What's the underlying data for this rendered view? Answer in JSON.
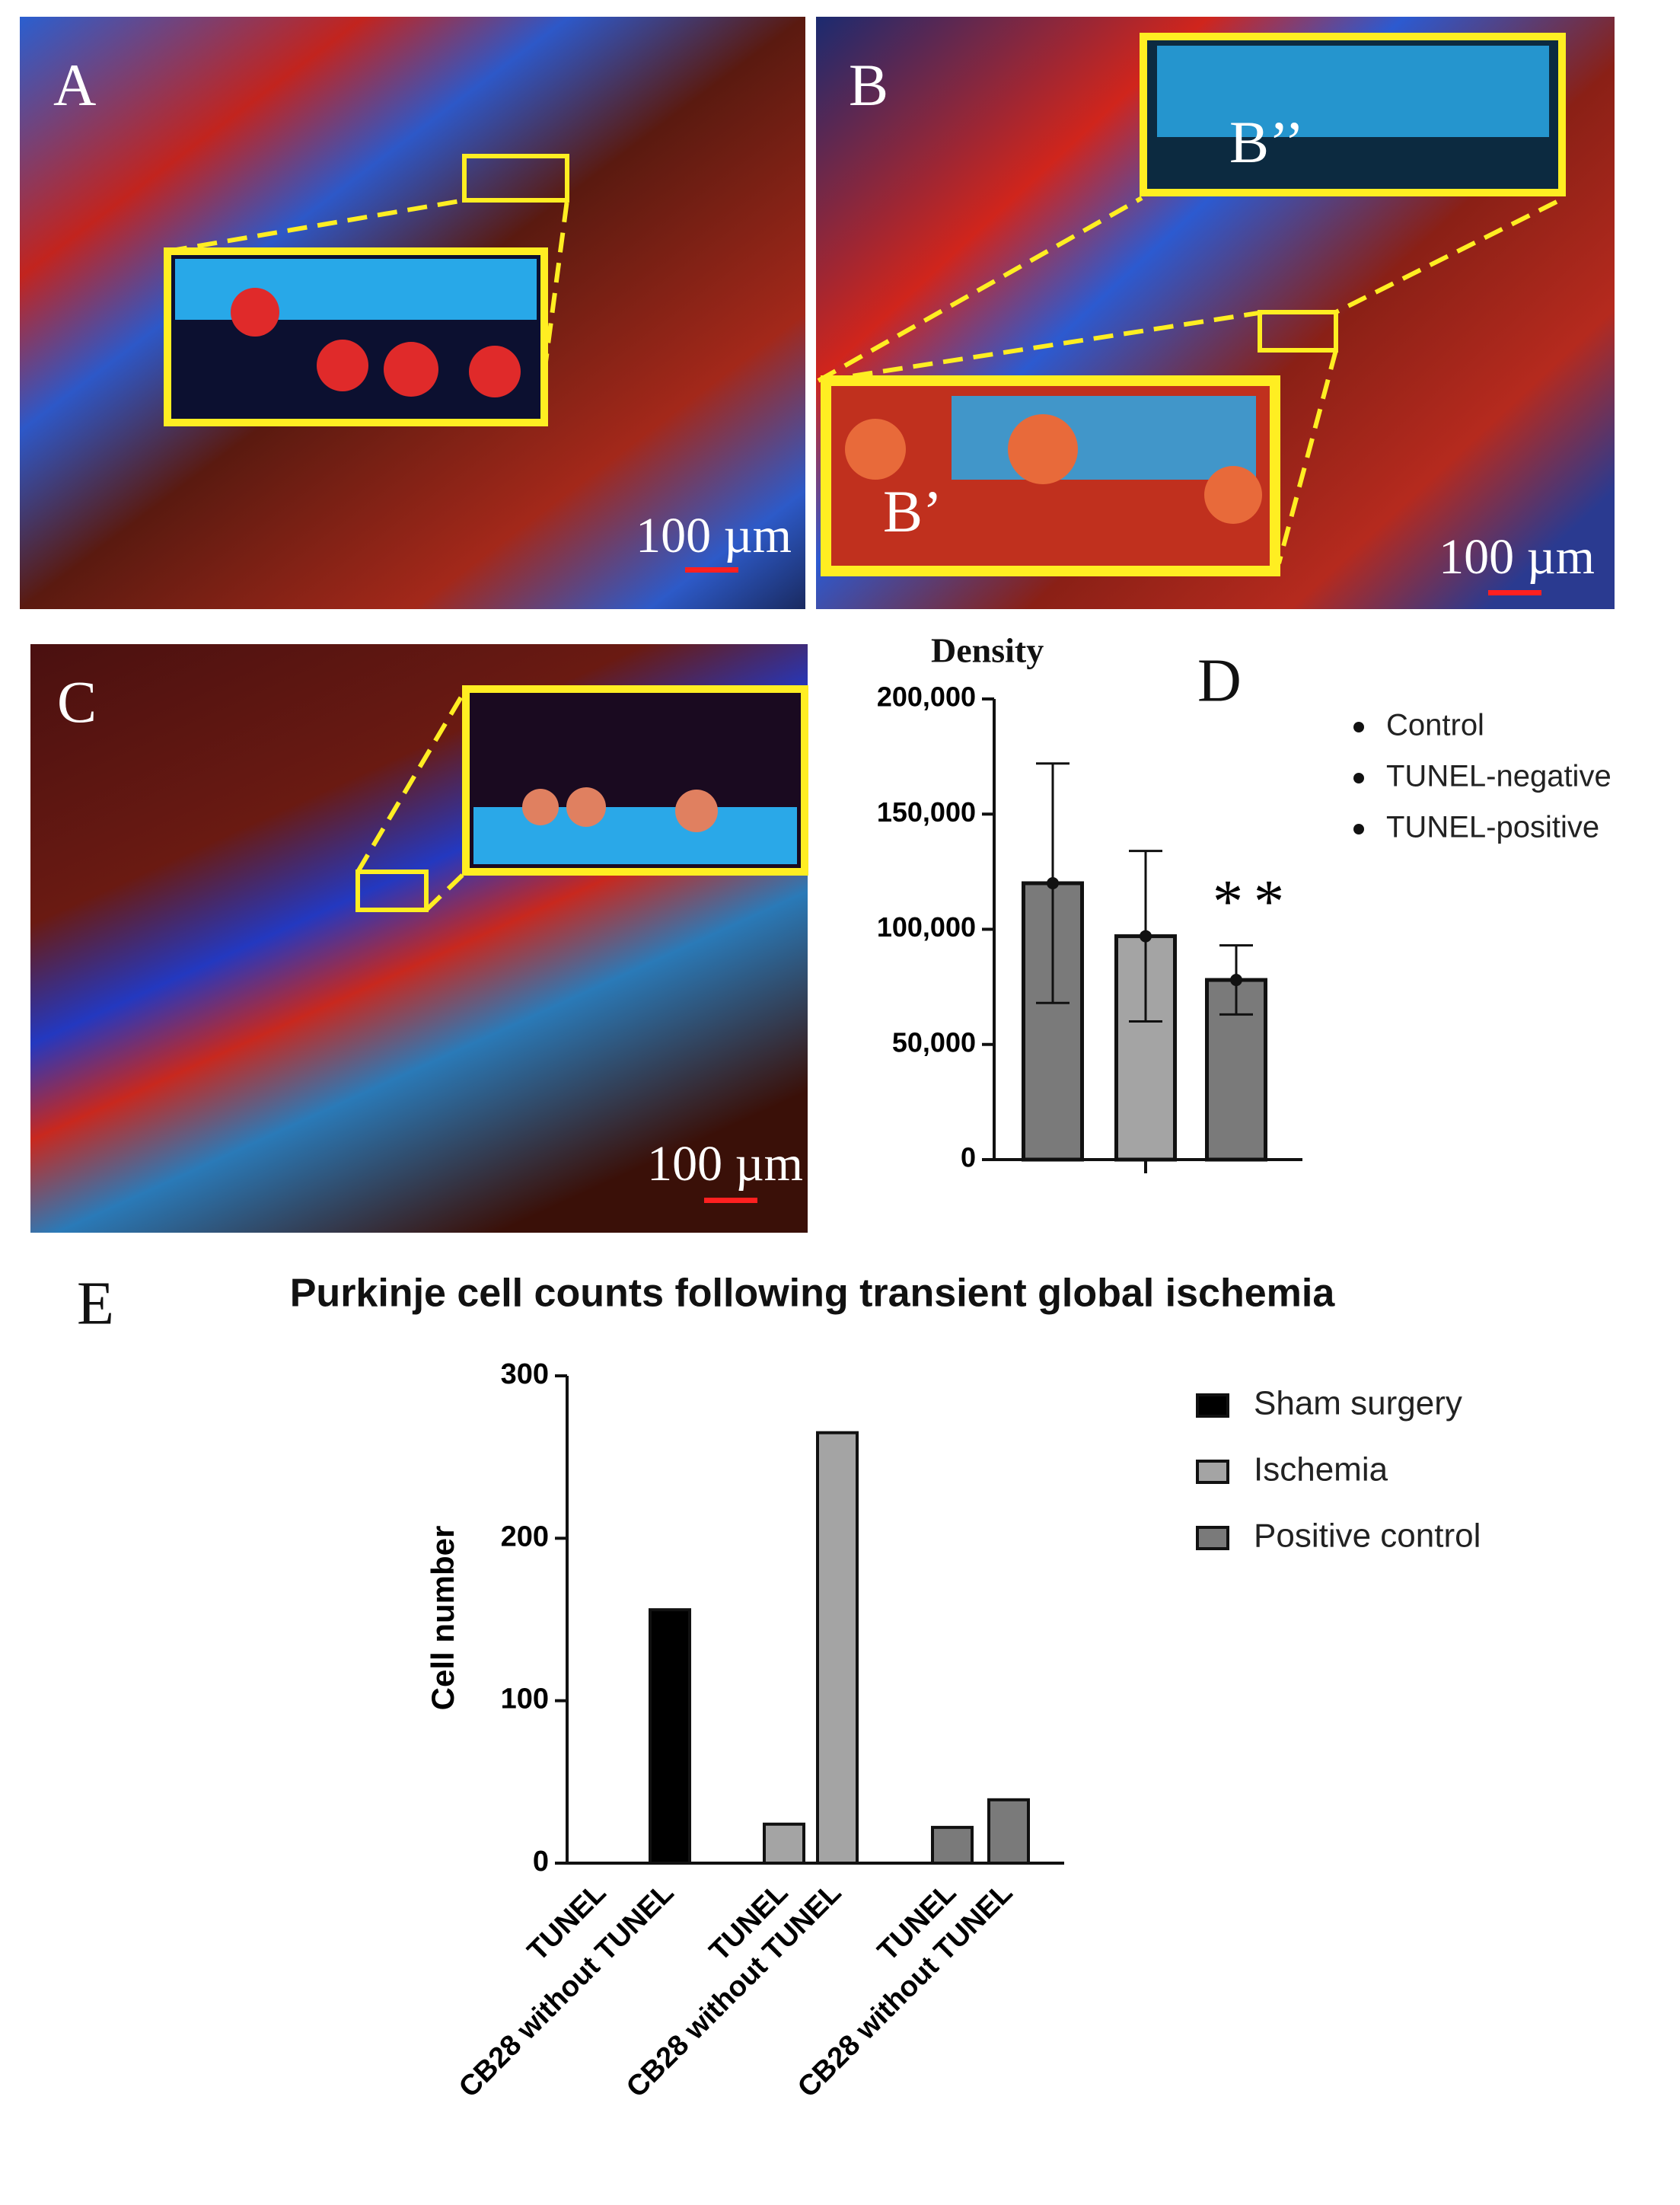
{
  "panels": [
    {
      "label": "A",
      "scale": "100 µm"
    },
    {
      "label": "B",
      "scale": "100 µm",
      "insets": [
        "B’’",
        "B’"
      ]
    },
    {
      "label": "C",
      "scale": "100 µm"
    }
  ],
  "chart_data": [
    {
      "type": "bar",
      "panel": "D",
      "title": "Density",
      "categories": [
        "Control",
        "TUNEL-negative",
        "TUNEL-positive"
      ],
      "values": [
        120000,
        97000,
        78000
      ],
      "errors": [
        52000,
        37000,
        15000
      ],
      "colors": [
        "#7a7a7a",
        "#a4a4a4",
        "#7a7a7a"
      ],
      "ylim": [
        0,
        200000
      ],
      "yticks": [
        0,
        {
          "value": 50000,
          "label": "50,000"
        },
        {
          "value": 100000,
          "label": "100,000"
        },
        {
          "value": 150000,
          "label": "150,000"
        },
        {
          "value": 200000,
          "label": "200,000"
        }
      ],
      "annotations": [
        {
          "text": "**"
        }
      ],
      "legend": "right"
    },
    {
      "type": "bar",
      "panel": "E",
      "title": "Purkinje cell counts following transient global ischemia",
      "ylabel": "Cell number",
      "categories": [
        "TUNEL",
        "CB28 without TUNEL",
        "TUNEL",
        "CB28 without TUNEL",
        "TUNEL",
        "CB28 without TUNEL"
      ],
      "series": [
        {
          "name": "Sham surgery",
          "color": "#000000",
          "values": [
            0,
            156,
            null,
            null,
            null,
            null
          ]
        },
        {
          "name": "Ischemia",
          "color": "#a4a4a4",
          "values": [
            null,
            null,
            24,
            265,
            null,
            null
          ]
        },
        {
          "name": "Positive control",
          "color": "#7a7a7a",
          "values": [
            null,
            null,
            null,
            null,
            22,
            39
          ]
        }
      ],
      "ylim": [
        0,
        300
      ],
      "yticks": [
        0,
        100,
        200,
        300
      ],
      "legend": "right"
    }
  ]
}
